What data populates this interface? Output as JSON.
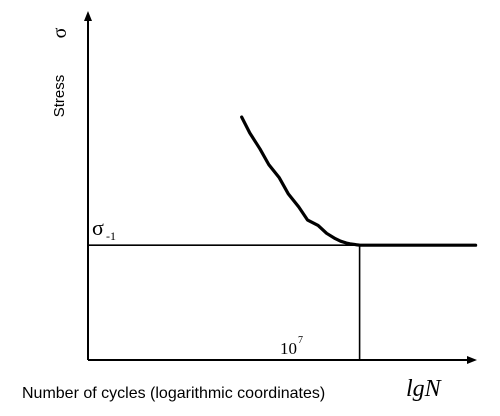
{
  "chart_data": {
    "type": "line",
    "title": "",
    "ylabel": "Stress",
    "ysymbol": "σ",
    "xlabel": "Number of cycles (logarithmic coordinates)",
    "xsymbol": "lgN",
    "xscale": "log",
    "yscale": "linear",
    "grid": false,
    "legend": "none",
    "annotations": {
      "fatigue_limit_base": "σ",
      "fatigue_limit_sub": "-1",
      "cycle_mark_base": "10",
      "cycle_mark_exp": "7"
    },
    "fatigue_limit_level": 0.435,
    "knee_cycles_exponent": 7,
    "series": [
      {
        "x": [
          3.95,
          4.18,
          4.42,
          4.67,
          4.92,
          5.17,
          5.42,
          5.67,
          5.92,
          6.16,
          6.36,
          6.52,
          6.65,
          6.76,
          6.86,
          6.95,
          7.0,
          8.0,
          9.0,
          10.0
        ],
        "y": [
          0.92,
          0.86,
          0.8,
          0.74,
          0.69,
          0.63,
          0.58,
          0.53,
          0.51,
          0.48,
          0.46,
          0.45,
          0.443,
          0.44,
          0.438,
          0.436,
          0.435,
          0.435,
          0.435,
          0.435
        ]
      }
    ]
  }
}
